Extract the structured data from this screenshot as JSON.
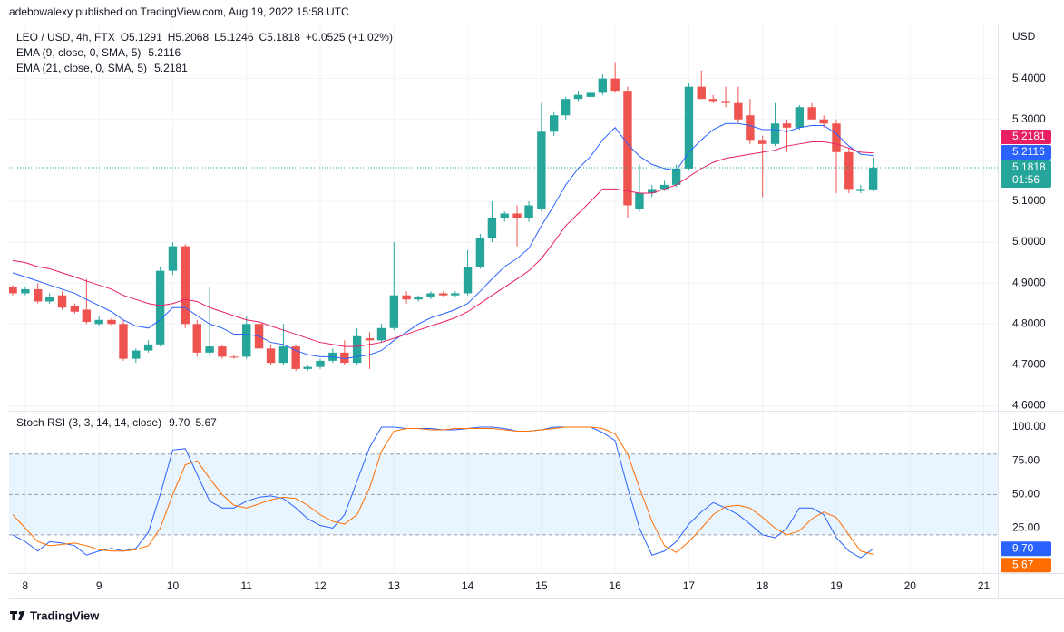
{
  "header": {
    "text": "adebowalexy published on TradingView.com, Aug 19, 2022 15:58 UTC"
  },
  "footer": {
    "logo_text": "TradingView"
  },
  "chart_data": [
    {
      "type": "candlestick",
      "title": "LEO / USD, 4h, FTX",
      "ohlc_labels": {
        "open": "O5.1291",
        "high": "H5.2068",
        "low": "L5.1246",
        "close": "C5.1818"
      },
      "change_label": "+0.0525 (+1.02%)",
      "axis_label": "USD",
      "up_color": "#26a69a",
      "down_color": "#ef5350",
      "grid": true,
      "x": [
        7.83,
        8,
        8.17,
        8.33,
        8.5,
        8.67,
        8.83,
        9,
        9.17,
        9.33,
        9.5,
        9.67,
        9.83,
        10,
        10.17,
        10.33,
        10.5,
        10.67,
        10.83,
        11,
        11.17,
        11.33,
        11.5,
        11.67,
        11.83,
        12,
        12.17,
        12.33,
        12.5,
        12.67,
        12.83,
        13,
        13.17,
        13.33,
        13.5,
        13.67,
        13.83,
        14,
        14.17,
        14.33,
        14.5,
        14.67,
        14.83,
        15,
        15.17,
        15.33,
        15.5,
        15.67,
        15.83,
        16,
        16.17,
        16.33,
        16.5,
        16.67,
        16.83,
        17,
        17.17,
        17.33,
        17.5,
        17.67,
        17.83,
        18,
        18.17,
        18.33,
        18.5,
        18.67,
        18.83,
        19,
        19.17,
        19.33,
        19.5
      ],
      "xlim": [
        7.78,
        21.19
      ],
      "xticks": [
        8,
        9,
        10,
        11,
        12,
        13,
        14,
        15,
        16,
        17,
        18,
        19,
        20,
        21
      ],
      "ylim": [
        4.59,
        5.53
      ],
      "yticks": [
        {
          "value": 4.6,
          "label": "4.6000"
        },
        {
          "value": 4.7,
          "label": "4.7000"
        },
        {
          "value": 4.8,
          "label": "4.8000"
        },
        {
          "value": 4.9,
          "label": "4.9000"
        },
        {
          "value": 5.0,
          "label": "5.0000"
        },
        {
          "value": 5.1,
          "label": "5.1000"
        },
        {
          "value": 5.2,
          "label": "5.2000"
        },
        {
          "value": 5.3,
          "label": "5.3000"
        },
        {
          "value": 5.4,
          "label": "5.4000"
        }
      ],
      "open": [
        4.89,
        4.875,
        4.885,
        4.855,
        4.87,
        4.845,
        4.835,
        4.8,
        4.81,
        4.8,
        4.715,
        4.735,
        4.75,
        4.93,
        4.99,
        4.8,
        4.73,
        4.745,
        4.72,
        4.72,
        4.8,
        4.74,
        4.705,
        4.745,
        4.69,
        4.695,
        4.71,
        4.73,
        4.705,
        4.765,
        4.76,
        4.79,
        4.87,
        4.86,
        4.865,
        4.875,
        4.87,
        4.875,
        4.94,
        5.01,
        5.06,
        5.07,
        5.06,
        5.08,
        5.27,
        5.31,
        5.35,
        5.355,
        5.365,
        5.4,
        5.37,
        5.08,
        5.12,
        5.13,
        5.14,
        5.18,
        5.38,
        5.35,
        5.345,
        5.34,
        5.31,
        5.25,
        5.24,
        5.29,
        5.28,
        5.33,
        5.3,
        5.29,
        5.22,
        5.125,
        5.1291
      ],
      "high": [
        4.895,
        4.89,
        4.9,
        4.875,
        4.88,
        4.85,
        4.91,
        4.82,
        4.815,
        4.81,
        4.74,
        4.76,
        4.94,
        5.0,
        4.995,
        4.81,
        4.89,
        4.75,
        4.725,
        4.82,
        4.81,
        4.75,
        4.8,
        4.75,
        4.7,
        4.715,
        4.74,
        4.76,
        4.79,
        4.78,
        4.8,
        5.0,
        4.88,
        4.87,
        4.88,
        4.88,
        4.88,
        4.98,
        5.02,
        5.1,
        5.075,
        5.09,
        5.1,
        5.34,
        5.32,
        5.355,
        5.37,
        5.37,
        5.41,
        5.44,
        5.38,
        5.19,
        5.14,
        5.15,
        5.19,
        5.39,
        5.42,
        5.36,
        5.38,
        5.38,
        5.35,
        5.26,
        5.34,
        5.3,
        5.335,
        5.34,
        5.31,
        5.3,
        5.23,
        5.14,
        5.2068
      ],
      "low": [
        4.87,
        4.87,
        4.85,
        4.85,
        4.835,
        4.825,
        4.8,
        4.795,
        4.795,
        4.71,
        4.705,
        4.73,
        4.745,
        4.92,
        4.79,
        4.72,
        4.72,
        4.715,
        4.715,
        4.715,
        4.735,
        4.7,
        4.7,
        4.685,
        4.685,
        4.69,
        4.705,
        4.7,
        4.7,
        4.69,
        4.755,
        4.785,
        4.85,
        4.855,
        4.86,
        4.865,
        4.865,
        4.87,
        4.935,
        5.0,
        5.05,
        4.99,
        5.05,
        5.075,
        5.26,
        5.3,
        5.345,
        5.35,
        5.36,
        5.365,
        5.06,
        5.075,
        5.11,
        5.125,
        5.135,
        5.175,
        5.35,
        5.34,
        5.33,
        5.29,
        5.24,
        5.11,
        5.235,
        5.22,
        5.275,
        5.3,
        5.28,
        5.12,
        5.12,
        5.12,
        5.1246
      ],
      "close": [
        4.875,
        4.885,
        4.855,
        4.865,
        4.84,
        4.83,
        4.805,
        4.81,
        4.8,
        4.715,
        4.735,
        4.75,
        4.93,
        4.99,
        4.8,
        4.73,
        4.745,
        4.72,
        4.718,
        4.8,
        4.74,
        4.705,
        4.745,
        4.69,
        4.695,
        4.71,
        4.73,
        4.705,
        4.77,
        4.76,
        4.79,
        4.87,
        4.86,
        4.865,
        4.875,
        4.87,
        4.875,
        4.94,
        5.01,
        5.06,
        5.07,
        5.06,
        5.09,
        5.27,
        5.31,
        5.35,
        5.36,
        5.365,
        5.4,
        5.37,
        5.09,
        5.12,
        5.13,
        5.14,
        5.18,
        5.38,
        5.35,
        5.345,
        5.34,
        5.3,
        5.25,
        5.24,
        5.29,
        5.28,
        5.33,
        5.3,
        5.29,
        5.22,
        5.13,
        5.13,
        5.1818
      ],
      "last_close_label": "5.1818",
      "countdown": "01:56",
      "series": [
        {
          "name": "EMA (9, close, 0, SMA, 5)",
          "color": "#2962ff",
          "last_label": "5.2116",
          "values": [
            4.925,
            4.915,
            4.905,
            4.895,
            4.885,
            4.875,
            4.86,
            4.845,
            4.83,
            4.81,
            4.795,
            4.79,
            4.81,
            4.84,
            4.84,
            4.82,
            4.8,
            4.79,
            4.775,
            4.775,
            4.77,
            4.755,
            4.75,
            4.735,
            4.725,
            4.72,
            4.72,
            4.715,
            4.72,
            4.725,
            4.735,
            4.76,
            4.78,
            4.8,
            4.815,
            4.825,
            4.835,
            4.85,
            4.88,
            4.91,
            4.94,
            4.96,
            4.985,
            5.04,
            5.09,
            5.14,
            5.18,
            5.21,
            5.25,
            5.28,
            5.24,
            5.21,
            5.19,
            5.18,
            5.175,
            5.22,
            5.25,
            5.275,
            5.29,
            5.29,
            5.285,
            5.275,
            5.275,
            5.27,
            5.28,
            5.285,
            5.285,
            5.265,
            5.235,
            5.215,
            5.2116
          ]
        },
        {
          "name": "EMA (21, close, 0, SMA, 5)",
          "color": "#e91e63",
          "last_label": "5.2181",
          "values": [
            4.955,
            4.95,
            4.94,
            4.935,
            4.925,
            4.915,
            4.905,
            4.895,
            4.885,
            4.87,
            4.86,
            4.85,
            4.845,
            4.85,
            4.86,
            4.855,
            4.84,
            4.83,
            4.82,
            4.81,
            4.805,
            4.795,
            4.785,
            4.775,
            4.765,
            4.755,
            4.75,
            4.745,
            4.745,
            4.75,
            4.755,
            4.765,
            4.775,
            4.785,
            4.795,
            4.805,
            4.815,
            4.83,
            4.85,
            4.87,
            4.89,
            4.91,
            4.93,
            4.96,
            5.0,
            5.04,
            5.07,
            5.1,
            5.13,
            5.13,
            5.125,
            5.12,
            5.12,
            5.13,
            5.14,
            5.16,
            5.18,
            5.195,
            5.205,
            5.21,
            5.215,
            5.22,
            5.225,
            5.235,
            5.24,
            5.245,
            5.245,
            5.24,
            5.23,
            5.22,
            5.2181
          ]
        }
      ]
    },
    {
      "type": "line",
      "title": "Stoch RSI (3, 3, 14, 14, close)",
      "ylim": [
        -3.6,
        110.8
      ],
      "yticks": [
        {
          "value": 25,
          "label": "25.00"
        },
        {
          "value": 50,
          "label": "50.00"
        },
        {
          "value": 75,
          "label": "75.00"
        },
        {
          "value": 100,
          "label": "100.00"
        }
      ],
      "levels": [
        20,
        50,
        80
      ],
      "band": [
        20,
        80
      ],
      "band_color": "#2196f3",
      "series": [
        {
          "color": "#2962ff",
          "last_label": "9.70",
          "values": [
            20,
            15,
            8,
            15,
            14,
            12,
            5,
            8,
            10,
            8,
            10,
            22,
            50,
            83,
            84,
            65,
            45,
            40,
            40,
            45,
            48,
            49,
            47,
            40,
            32,
            27,
            25,
            35,
            60,
            85,
            100,
            100,
            99,
            99,
            99,
            98,
            98,
            99,
            100,
            100,
            99,
            97,
            97,
            98,
            100,
            100,
            100,
            100,
            96,
            90,
            55,
            25,
            5,
            8,
            15,
            28,
            37,
            44,
            40,
            35,
            28,
            20,
            18,
            25,
            40,
            40,
            35,
            18,
            8,
            3,
            9.7
          ]
        },
        {
          "color": "#ff6d00",
          "last_label": "5.67",
          "values": [
            35,
            25,
            15,
            12,
            13,
            14,
            12,
            9,
            8,
            8,
            9,
            12,
            25,
            50,
            72,
            75,
            62,
            50,
            42,
            40,
            43,
            46,
            48,
            47,
            42,
            35,
            30,
            28,
            35,
            55,
            82,
            97,
            99,
            99,
            98,
            98,
            99,
            99,
            99,
            99,
            98,
            97,
            97,
            98,
            99,
            100,
            100,
            100,
            99,
            95,
            80,
            55,
            30,
            12,
            7,
            15,
            25,
            35,
            41,
            42,
            40,
            33,
            25,
            20,
            23,
            32,
            37,
            33,
            20,
            8,
            5.67
          ]
        }
      ]
    }
  ]
}
